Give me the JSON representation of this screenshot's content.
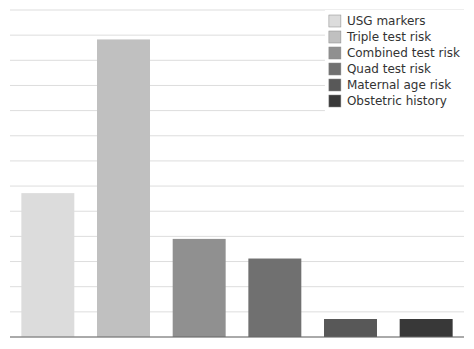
{
  "chart_data": {
    "type": "bar",
    "categories": [
      "USG markers",
      "Triple test risk",
      "Combined test risk",
      "Quad test risk",
      "Maternal age risk",
      "Obstetric history"
    ],
    "values": [
      44,
      91,
      30,
      24,
      5.5,
      5.5
    ],
    "colors": [
      "#dcdcdc",
      "#c0c0c0",
      "#909090",
      "#707070",
      "#585858",
      "#383838"
    ],
    "ylim": [
      0,
      100
    ],
    "yticks": [
      0,
      7.692307692307692,
      15.384615384615385,
      23.076923076923077,
      30.76923076923077,
      38.46153846153846,
      46.15384615384615,
      53.84615384615385,
      61.53846153846154,
      69.23076923076923,
      76.92307692307692,
      84.61538461538461,
      92.3076923076923,
      100
    ],
    "grid": true,
    "tick_labels": false,
    "legend": "upper right"
  }
}
